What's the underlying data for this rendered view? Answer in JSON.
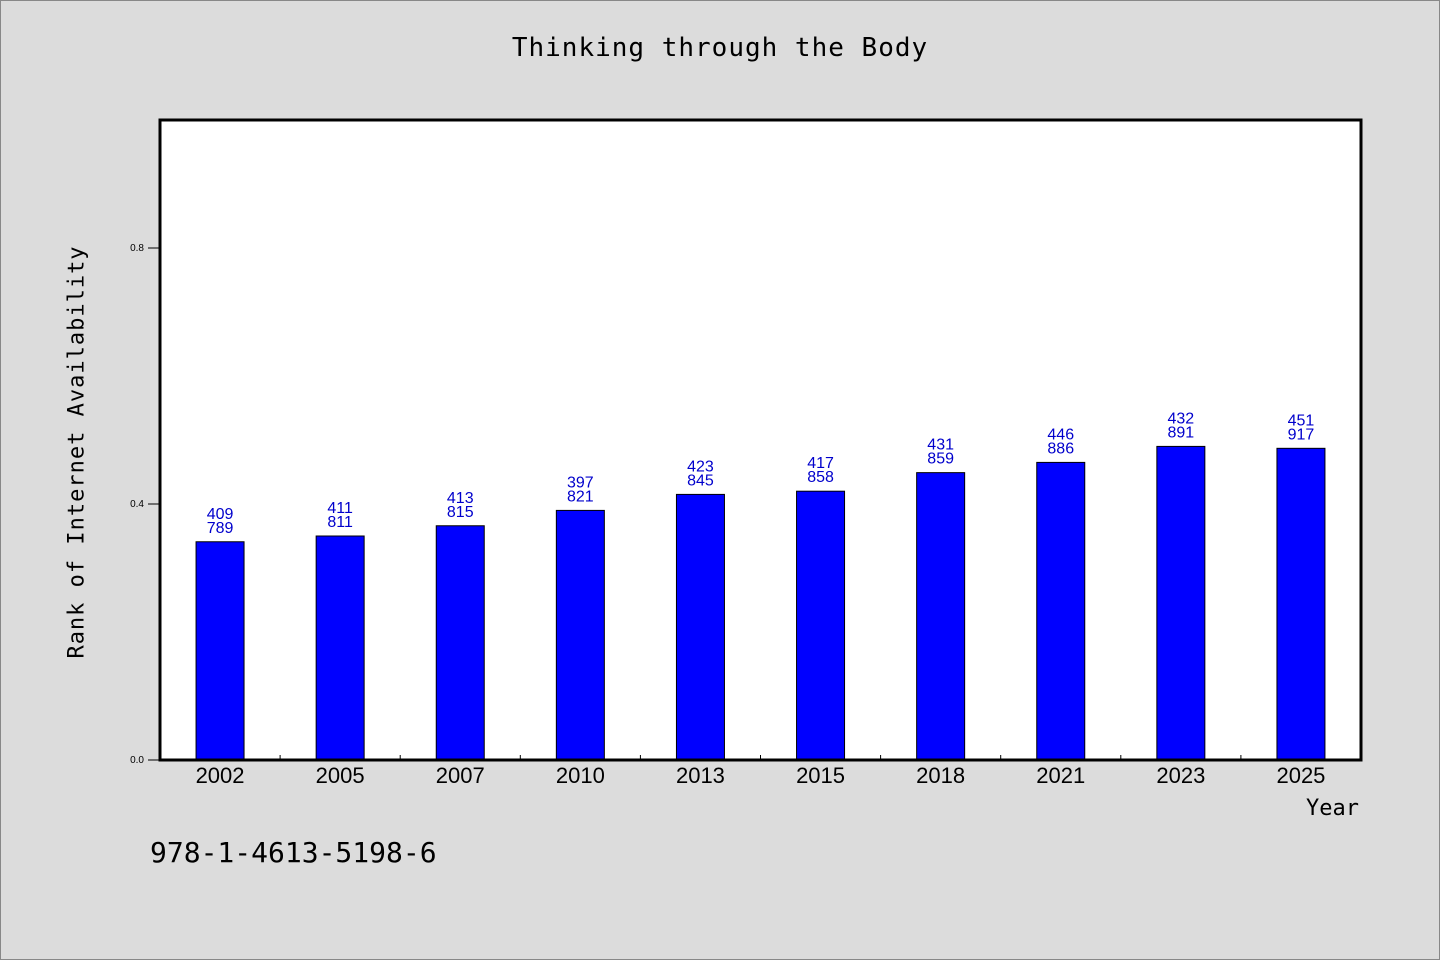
{
  "chart_data": {
    "type": "bar",
    "title": "Thinking through the Body",
    "xlabel": "Year",
    "ylabel": "Rank of Internet Availability",
    "ylim": [
      0,
      1.0
    ],
    "yticks": [
      0.0,
      0.4,
      0.8
    ],
    "ytick_labels": [
      "0.0",
      "0.4",
      "0.8"
    ],
    "categories": [
      "2002",
      "2005",
      "2007",
      "2010",
      "2013",
      "2015",
      "2018",
      "2021",
      "2023",
      "2025"
    ],
    "values": [
      0.341,
      0.35,
      0.366,
      0.39,
      0.415,
      0.42,
      0.449,
      0.465,
      0.49,
      0.487
    ],
    "data_labels_top": [
      "409",
      "411",
      "413",
      "397",
      "423",
      "417",
      "431",
      "446",
      "432",
      "451"
    ],
    "data_labels_bottom": [
      "789",
      "811",
      "815",
      "821",
      "845",
      "858",
      "859",
      "886",
      "891",
      "917"
    ],
    "grid": false,
    "bar_color": "#0000ff",
    "label_color": "#0000cc"
  },
  "footer": {
    "isbn": "978-1-4613-5198-6"
  }
}
